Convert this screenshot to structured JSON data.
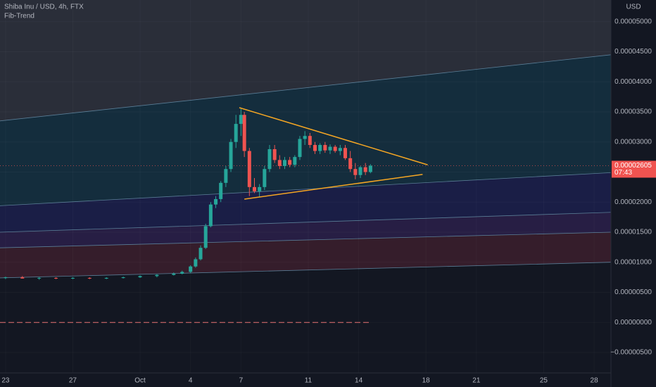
{
  "chart_data": {
    "type": "candlestick",
    "title": "Shiba Inu / USD, 4h, FTX",
    "subtitle": "Fib-Trend",
    "y_axis_unit": "USD",
    "up_color": "#26a69a",
    "down_color": "#ef5350",
    "grid": true,
    "xlim": [
      -0.33,
      36
    ],
    "ylim": [
      -8.4e-06,
      5.36e-05
    ],
    "xticks": [
      {
        "value": 0,
        "label": "23"
      },
      {
        "value": 4,
        "label": "27"
      },
      {
        "value": 8,
        "label": "Oct"
      },
      {
        "value": 11,
        "label": "4"
      },
      {
        "value": 14,
        "label": "7"
      },
      {
        "value": 18,
        "label": "11"
      },
      {
        "value": 21,
        "label": "14"
      },
      {
        "value": 25,
        "label": "18"
      },
      {
        "value": 28,
        "label": "21"
      },
      {
        "value": 32,
        "label": "25"
      },
      {
        "value": 35,
        "label": "28"
      }
    ],
    "yticks": [
      {
        "value": -5e-06,
        "label": "−0.00000500"
      },
      {
        "value": 0,
        "label": "0.00000000"
      },
      {
        "value": 5e-06,
        "label": "0.00000500"
      },
      {
        "value": 1e-05,
        "label": "0.00001000"
      },
      {
        "value": 1.5e-05,
        "label": "0.00001500"
      },
      {
        "value": 2e-05,
        "label": "0.00002000"
      },
      {
        "value": 2.5e-05,
        "label": "0.00002500"
      },
      {
        "value": 3e-05,
        "label": "0.00003000"
      },
      {
        "value": 3.5e-05,
        "label": "0.00003500"
      },
      {
        "value": 4e-05,
        "label": "0.00004000"
      },
      {
        "value": 4.5e-05,
        "label": "0.00004500"
      },
      {
        "value": 5e-05,
        "label": "0.00005000"
      }
    ],
    "x": [
      0,
      1,
      2,
      3,
      4,
      5,
      6,
      7,
      8,
      9,
      10,
      10.5,
      11,
      11.3,
      11.6,
      11.9,
      12.2,
      12.5,
      12.8,
      13.1,
      13.4,
      13.7,
      14.0,
      14.2,
      14.5,
      14.8,
      15.1,
      15.4,
      15.7,
      16.0,
      16.3,
      16.6,
      16.9,
      17.2,
      17.5,
      17.8,
      18.1,
      18.4,
      18.7,
      19.0,
      19.3,
      19.6,
      19.9,
      20.2,
      20.5,
      20.8,
      21.1,
      21.4,
      21.7
    ],
    "open": [
      7.4e-06,
      7.5e-06,
      7.3e-06,
      7.4e-06,
      7.3e-06,
      7.4e-06,
      7.3e-06,
      7.4e-06,
      7.5e-06,
      7.7e-06,
      7.9e-06,
      8.1e-06,
      8.4e-06,
      9.3e-06,
      1.05e-05,
      1.24e-05,
      1.6e-05,
      1.96e-05,
      2.05e-05,
      2.32e-05,
      2.55e-05,
      3e-05,
      3.3e-05,
      3.45e-05,
      2.85e-05,
      2.25e-05,
      2.18e-05,
      2.25e-05,
      2.55e-05,
      2.88e-05,
      2.7e-05,
      2.6e-05,
      2.7e-05,
      2.62e-05,
      2.75e-05,
      3.05e-05,
      3.1e-05,
      2.95e-05,
      2.85e-05,
      2.95e-05,
      2.86e-05,
      2.92e-05,
      2.85e-05,
      2.9e-05,
      2.73e-05,
      2.55e-05,
      2.45e-05,
      2.58e-05,
      2.5e-05
    ],
    "high": [
      7.6e-06,
      7.7e-06,
      7.5e-06,
      7.5e-06,
      7.5e-06,
      7.5e-06,
      7.5e-06,
      7.6e-06,
      7.8e-06,
      8e-06,
      8.3e-06,
      8.6e-06,
      9.5e-06,
      1.08e-05,
      1.28e-05,
      1.64e-05,
      2e-05,
      2.1e-05,
      2.35e-05,
      2.6e-05,
      3.05e-05,
      3.45e-05,
      3.55e-05,
      3.5e-05,
      2.9e-05,
      2.4e-05,
      2.3e-05,
      2.6e-05,
      2.95e-05,
      2.95e-05,
      2.78e-05,
      2.75e-05,
      2.75e-05,
      2.78e-05,
      3.1e-05,
      3.18e-05,
      3.15e-05,
      3e-05,
      2.98e-05,
      3e-05,
      2.96e-05,
      2.95e-05,
      2.95e-05,
      2.95e-05,
      2.85e-05,
      2.65e-05,
      2.6e-05,
      2.65e-05,
      2.63e-05
    ],
    "low": [
      7.2e-06,
      7.3e-06,
      7.1e-06,
      7.2e-06,
      7.2e-06,
      7.2e-06,
      7.2e-06,
      7.3e-06,
      7.4e-06,
      7.5e-06,
      7.8e-06,
      8e-06,
      8.2e-06,
      9.1e-06,
      1.03e-05,
      1.22e-05,
      1.58e-05,
      1.9e-05,
      2e-05,
      2.25e-05,
      2.5e-05,
      2.9e-05,
      3.1e-05,
      2.75e-05,
      2.1e-05,
      2.15e-05,
      2.08e-05,
      2.2e-05,
      2.5e-05,
      2.65e-05,
      2.55e-05,
      2.55e-05,
      2.58e-05,
      2.58e-05,
      2.7e-05,
      2.95e-05,
      2.9e-05,
      2.8e-05,
      2.8e-05,
      2.82e-05,
      2.8e-05,
      2.82e-05,
      2.78e-05,
      2.7e-05,
      2.5e-05,
      2.38e-05,
      2.4e-05,
      2.45e-05,
      2.48e-05
    ],
    "close": [
      7.5e-06,
      7.3e-06,
      7.4e-06,
      7.3e-06,
      7.4e-06,
      7.3e-06,
      7.4e-06,
      7.5e-06,
      7.7e-06,
      7.9e-06,
      8.1e-06,
      8.4e-06,
      9.3e-06,
      1.05e-05,
      1.24e-05,
      1.6e-05,
      1.96e-05,
      2.05e-05,
      2.32e-05,
      2.55e-05,
      3e-05,
      3.3e-05,
      3.45e-05,
      2.85e-05,
      2.25e-05,
      2.18e-05,
      2.25e-05,
      2.55e-05,
      2.88e-05,
      2.7e-05,
      2.6e-05,
      2.7e-05,
      2.62e-05,
      2.75e-05,
      3.05e-05,
      3.1e-05,
      2.95e-05,
      2.85e-05,
      2.95e-05,
      2.86e-05,
      2.92e-05,
      2.85e-05,
      2.9e-05,
      2.73e-05,
      2.55e-05,
      2.45e-05,
      2.58e-05,
      2.5e-05,
      2.605e-05
    ],
    "last_price": {
      "value": 2.605e-05,
      "label": "0.00002605",
      "color": "#f05350"
    },
    "countdown": "07:43",
    "fib_lines": [
      {
        "left": 3.35e-05,
        "right": 4.45e-05
      },
      {
        "left": 1.94e-05,
        "right": 2.49e-05
      },
      {
        "left": 1.5e-05,
        "right": 1.83e-05
      },
      {
        "left": 1.24e-05,
        "right": 1.5e-05
      },
      {
        "left": 7.4e-06,
        "right": 1e-05
      }
    ],
    "band_colors": [
      "#153040",
      "#1c1f4a",
      "#2a1f48",
      "#3a1e2c"
    ],
    "above_color": "#2a2e39",
    "fib_line_color": "#5a7d96",
    "triangle_color": "#f5a623",
    "triangle": [
      {
        "x1": 13.9,
        "y1": 3.57e-05,
        "x2": 25.1,
        "y2": 2.62e-05
      },
      {
        "x1": 14.2,
        "y1": 2.05e-05,
        "x2": 24.8,
        "y2": 2.46e-05
      }
    ],
    "hline": {
      "value": 0,
      "color": "#e57373"
    }
  }
}
